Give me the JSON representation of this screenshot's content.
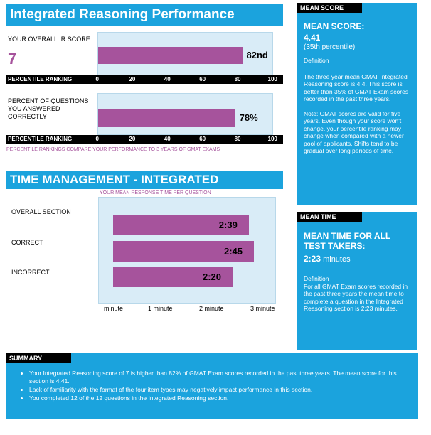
{
  "performance": {
    "title": "Integrated Reasoning Performance",
    "overall_label": "YOUR OVERALL IR SCORE:",
    "overall_score": "7",
    "score_percentile_label": "82nd",
    "score_percentile_value": 82,
    "percentile_ranking_label": "PERCENTILE RANKING",
    "axis_ticks": [
      "0",
      "20",
      "40",
      "60",
      "80",
      "100"
    ],
    "correct_label": "PERCENT OF QUESTIONS YOU ANSWERED CORRECTLY",
    "correct_value_label": "78%",
    "correct_value": 78,
    "note": "PERCENTILE RANKINGS COMPARE YOUR PERFORMANCE TO 3 YEARS OF GMAT EXAMS"
  },
  "time_management": {
    "title": "TIME MANAGEMENT - INTEGRATED REASONING",
    "subtitle": "YOUR MEAN RESPONSE TIME PER QUESTION",
    "rows": [
      {
        "label": "OVERALL SECTION",
        "value_label": "2:39",
        "seconds": 159
      },
      {
        "label": "CORRECT",
        "value_label": "2:45",
        "seconds": 165
      },
      {
        "label": "INCORRECT",
        "value_label": "2:20",
        "seconds": 140
      }
    ],
    "axis_ticks": [
      "minute",
      "1 minute",
      "2 minute",
      "3 minute"
    ]
  },
  "mean_score": {
    "header": "MEAN SCORE",
    "heading": "MEAN SCORE:",
    "value": "4.41",
    "percentile": "(35th percentile)",
    "definition_label": "Definition",
    "definition": "The three year mean GMAT Integrated Reasoning score is 4.4. This score is better than 35% of GMAT Exam scores recorded in the past three years.",
    "note": "Note:  GMAT scores are valid for five years. Even though your score won't change, your percentile ranking may change when compared with a newer pool of applicants.  Shifts tend to be gradual over long periods of time."
  },
  "mean_time": {
    "header": "MEAN TIME",
    "heading": "MEAN TIME FOR ALL TEST TAKERS:",
    "value": "2:23",
    "unit": " minutes",
    "definition_label": "Definition",
    "definition": "For all GMAT Exam scores recorded in the past three years the mean time to complete a question in the Integrated Reasoning  section is 2:23 minutes."
  },
  "summary": {
    "header": "SUMMARY",
    "items": [
      "Your Integrated Reasoning score of 7 is higher than 82% of GMAT Exam scores recorded in the past three years. The mean score for this section is 4.41.",
      "Lack of familiarity with the format of the four item types may negatively impact performance in this section.",
      "You completed 12 of the 12 questions in the Integrated Reasoning section."
    ]
  },
  "colors": {
    "accent_blue": "#1ba3dd",
    "bar_purple": "#a6539c",
    "chart_bg": "#d9ecf7"
  },
  "chart_data": [
    {
      "type": "bar",
      "title": "",
      "categories": [
        "YOUR OVERALL IR SCORE"
      ],
      "values": [
        82
      ],
      "xlabel": "PERCENTILE RANKING",
      "ylim": [
        0,
        100
      ]
    },
    {
      "type": "bar",
      "title": "",
      "categories": [
        "PERCENT OF QUESTIONS YOU ANSWERED CORRECTLY"
      ],
      "values": [
        78
      ],
      "xlabel": "PERCENTILE RANKING",
      "ylim": [
        0,
        100
      ]
    },
    {
      "type": "bar",
      "title": "YOUR MEAN RESPONSE TIME PER QUESTION",
      "categories": [
        "OVERALL SECTION",
        "CORRECT",
        "INCORRECT"
      ],
      "values": [
        159,
        165,
        140
      ],
      "value_labels": [
        "2:39",
        "2:45",
        "2:20"
      ],
      "xlabel": "",
      "ylim": [
        0,
        180
      ]
    }
  ]
}
